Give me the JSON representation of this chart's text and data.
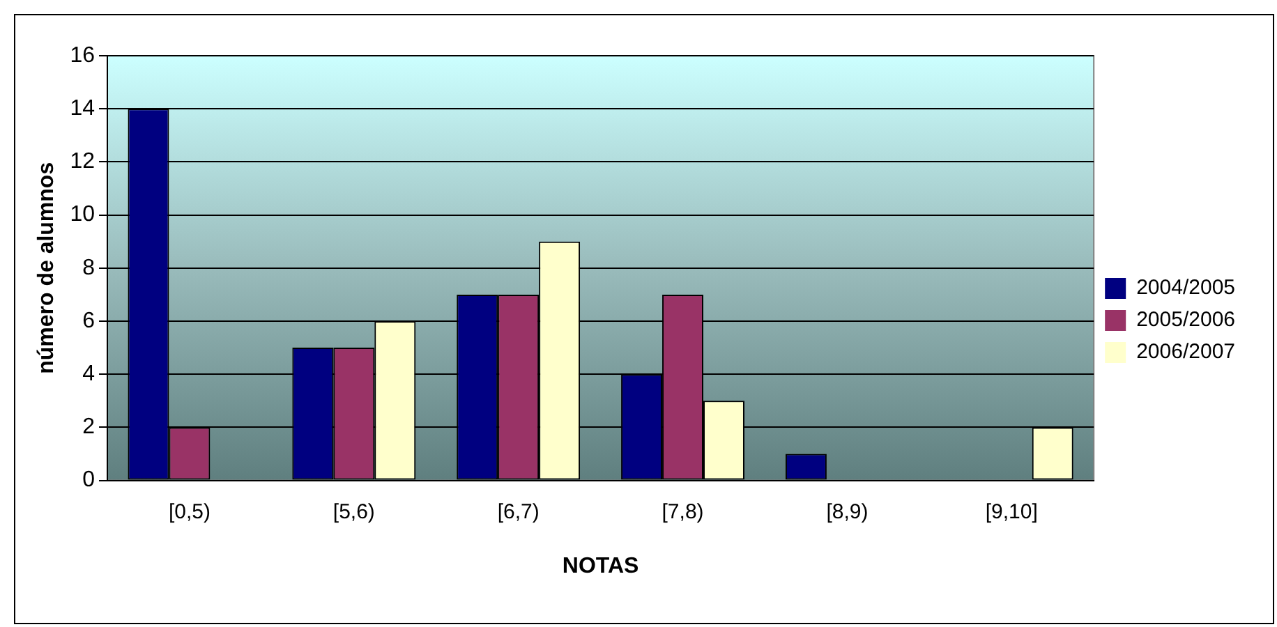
{
  "chart_data": {
    "type": "bar",
    "xlabel": "NOTAS",
    "ylabel": "número de alumnos",
    "categories": [
      "[0,5)",
      "[5,6)",
      "[6,7)",
      "[7,8)",
      "[8,9)",
      "[9,10]"
    ],
    "series": [
      {
        "name": "2004/2005",
        "color": "#000080",
        "values": [
          14,
          5,
          7,
          4,
          1,
          0
        ]
      },
      {
        "name": "2005/2006",
        "color": "#993366",
        "values": [
          2,
          5,
          7,
          7,
          0,
          0
        ]
      },
      {
        "name": "2006/2007",
        "color": "#ffffcc",
        "values": [
          0,
          6,
          9,
          3,
          0,
          2
        ]
      }
    ],
    "ylim": [
      0,
      16
    ],
    "yticks": [
      0,
      2,
      4,
      6,
      8,
      10,
      12,
      14,
      16
    ],
    "grid": "y",
    "legend": "right"
  }
}
